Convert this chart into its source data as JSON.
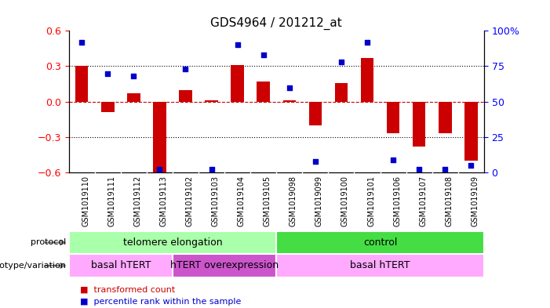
{
  "title": "GDS4964 / 201212_at",
  "samples": [
    "GSM1019110",
    "GSM1019111",
    "GSM1019112",
    "GSM1019113",
    "GSM1019102",
    "GSM1019103",
    "GSM1019104",
    "GSM1019105",
    "GSM1019098",
    "GSM1019099",
    "GSM1019100",
    "GSM1019101",
    "GSM1019106",
    "GSM1019107",
    "GSM1019108",
    "GSM1019109"
  ],
  "bar_values": [
    0.3,
    -0.09,
    0.07,
    -0.62,
    0.1,
    0.01,
    0.31,
    0.17,
    0.01,
    -0.2,
    0.16,
    0.37,
    -0.27,
    -0.38,
    -0.27,
    -0.5
  ],
  "dot_values": [
    92,
    70,
    68,
    2,
    73,
    2,
    90,
    83,
    60,
    8,
    78,
    92,
    9,
    2,
    2,
    5
  ],
  "ylim_left": [
    -0.6,
    0.6
  ],
  "ylim_right": [
    0,
    100
  ],
  "yticks_left": [
    -0.6,
    -0.3,
    0.0,
    0.3,
    0.6
  ],
  "yticks_right": [
    0,
    25,
    50,
    75,
    100
  ],
  "bar_color": "#CC0000",
  "dot_color": "#0000CC",
  "zero_line_color": "#CC0000",
  "protocol_groups": [
    {
      "label": "telomere elongation",
      "start": 0,
      "end": 7,
      "color": "#AAFFAA"
    },
    {
      "label": "control",
      "start": 8,
      "end": 15,
      "color": "#44DD44"
    }
  ],
  "genotype_groups": [
    {
      "label": "basal hTERT",
      "start": 0,
      "end": 3,
      "color": "#FFAAFF"
    },
    {
      "label": "hTERT overexpression",
      "start": 4,
      "end": 7,
      "color": "#CC55CC"
    },
    {
      "label": "basal hTERT",
      "start": 8,
      "end": 15,
      "color": "#FFAAFF"
    }
  ],
  "legend_items": [
    {
      "label": "transformed count",
      "color": "#CC0000"
    },
    {
      "label": "percentile rank within the sample",
      "color": "#0000CC"
    }
  ],
  "protocol_label": "protocol",
  "genotype_label": "genotype/variation",
  "ticklabel_bg": "#CCCCCC",
  "title_fontsize": 11,
  "tick_fontsize": 7,
  "row_label_fontsize": 8,
  "row_text_fontsize": 9,
  "legend_fontsize": 8
}
